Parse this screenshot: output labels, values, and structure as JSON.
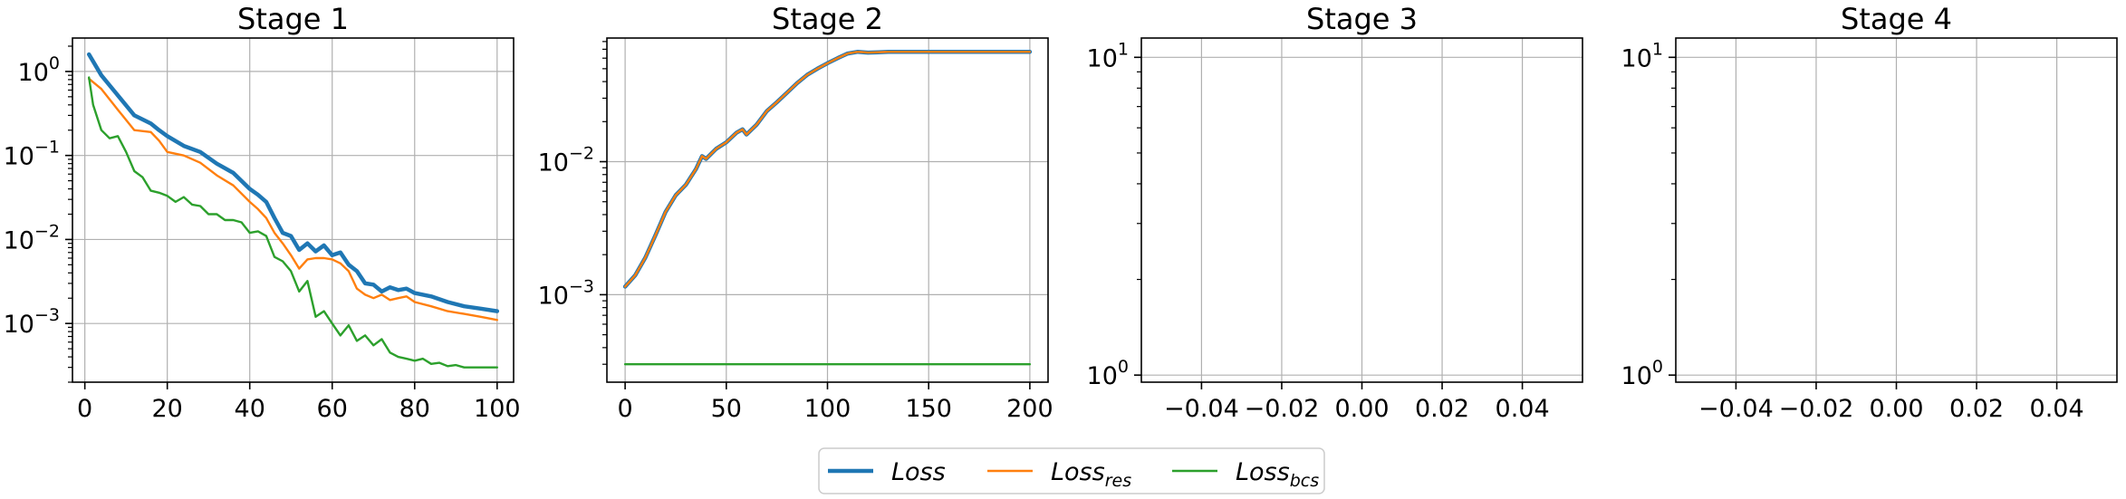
{
  "colors": {
    "loss": "#1f77b4",
    "loss_res": "#ff7f0e",
    "loss_bcs": "#2ca02c",
    "grid": "#b0b0b0"
  },
  "legend": {
    "placement": "bottom-center",
    "items": [
      {
        "base": "Loss",
        "sub": "",
        "color_key": "loss",
        "width": "thick"
      },
      {
        "base": "Loss",
        "sub": "res",
        "color_key": "loss_res",
        "width": "thin"
      },
      {
        "base": "Loss",
        "sub": "bcs",
        "color_key": "loss_bcs",
        "width": "thin"
      }
    ]
  },
  "chart_data": [
    {
      "type": "line",
      "title": "Stage 1",
      "yscale": "log",
      "grid": true,
      "xlim": [
        -3,
        104
      ],
      "ylim": [
        0.0002,
        2.5
      ],
      "xticks": [
        0,
        20,
        40,
        60,
        80,
        100
      ],
      "xticklabels": [
        "0",
        "20",
        "40",
        "60",
        "80",
        "100"
      ],
      "yticks": [
        0.001,
        0.01,
        0.1,
        1
      ],
      "yticklabels": [
        {
          "base": "10",
          "exp": "−3"
        },
        {
          "base": "10",
          "exp": "−2"
        },
        {
          "base": "10",
          "exp": "−1"
        },
        {
          "base": "10",
          "exp": "0"
        }
      ],
      "series": [
        {
          "key": "loss",
          "x": [
            1,
            4,
            8,
            12,
            16,
            18,
            20,
            24,
            28,
            32,
            36,
            40,
            42,
            44,
            46,
            48,
            50,
            52,
            54,
            56,
            58,
            60,
            62,
            64,
            66,
            68,
            70,
            72,
            74,
            76,
            78,
            80,
            84,
            88,
            92,
            96,
            100
          ],
          "y": [
            1.6,
            0.9,
            0.52,
            0.3,
            0.24,
            0.2,
            0.17,
            0.13,
            0.11,
            0.08,
            0.062,
            0.04,
            0.034,
            0.028,
            0.018,
            0.012,
            0.011,
            0.0075,
            0.009,
            0.0072,
            0.0085,
            0.0065,
            0.007,
            0.005,
            0.0042,
            0.003,
            0.0029,
            0.0024,
            0.0027,
            0.0025,
            0.0026,
            0.0023,
            0.0021,
            0.0018,
            0.0016,
            0.0015,
            0.0014
          ]
        },
        {
          "key": "loss_res",
          "x": [
            1,
            4,
            8,
            12,
            16,
            18,
            20,
            24,
            28,
            32,
            36,
            40,
            42,
            44,
            46,
            48,
            50,
            52,
            54,
            56,
            58,
            60,
            62,
            64,
            66,
            68,
            70,
            72,
            74,
            76,
            78,
            80,
            84,
            88,
            92,
            96,
            100
          ],
          "y": [
            0.82,
            0.62,
            0.35,
            0.2,
            0.19,
            0.15,
            0.11,
            0.1,
            0.082,
            0.058,
            0.044,
            0.028,
            0.023,
            0.018,
            0.012,
            0.009,
            0.0065,
            0.0045,
            0.0058,
            0.006,
            0.006,
            0.0058,
            0.0052,
            0.0042,
            0.0026,
            0.0022,
            0.002,
            0.0022,
            0.0019,
            0.002,
            0.0021,
            0.0018,
            0.0016,
            0.0014,
            0.0013,
            0.0012,
            0.0011
          ]
        },
        {
          "key": "loss_bcs",
          "x": [
            1,
            2,
            4,
            6,
            8,
            10,
            12,
            14,
            16,
            18,
            20,
            22,
            24,
            26,
            28,
            30,
            32,
            34,
            36,
            38,
            40,
            42,
            44,
            46,
            48,
            50,
            52,
            54,
            56,
            58,
            60,
            62,
            64,
            66,
            68,
            70,
            72,
            74,
            76,
            78,
            80,
            82,
            84,
            86,
            88,
            90,
            92,
            94,
            96,
            100
          ],
          "y": [
            0.85,
            0.4,
            0.2,
            0.16,
            0.17,
            0.11,
            0.065,
            0.055,
            0.038,
            0.036,
            0.033,
            0.028,
            0.032,
            0.026,
            0.025,
            0.02,
            0.02,
            0.017,
            0.017,
            0.016,
            0.012,
            0.0125,
            0.011,
            0.0062,
            0.0055,
            0.0042,
            0.0024,
            0.0032,
            0.0012,
            0.0014,
            0.001,
            0.00072,
            0.00095,
            0.00062,
            0.00072,
            0.00055,
            0.00065,
            0.00045,
            0.0004,
            0.00038,
            0.00036,
            0.00038,
            0.00033,
            0.00034,
            0.00031,
            0.00032,
            0.0003,
            0.0003,
            0.0003,
            0.0003
          ]
        }
      ]
    },
    {
      "type": "line",
      "title": "Stage 2",
      "yscale": "log",
      "grid": true,
      "xlim": [
        -9,
        209
      ],
      "ylim": [
        0.00022,
        0.085
      ],
      "xticks": [
        0,
        50,
        100,
        150,
        200
      ],
      "xticklabels": [
        "0",
        "50",
        "100",
        "150",
        "200"
      ],
      "yticks": [
        0.001,
        0.01
      ],
      "yticklabels": [
        {
          "base": "10",
          "exp": "−3"
        },
        {
          "base": "10",
          "exp": "−2"
        }
      ],
      "series": [
        {
          "key": "loss",
          "x": [
            0,
            5,
            10,
            15,
            20,
            25,
            30,
            35,
            38,
            40,
            45,
            50,
            55,
            58,
            60,
            65,
            70,
            75,
            80,
            85,
            90,
            95,
            100,
            105,
            110,
            115,
            120,
            125,
            130,
            140,
            150,
            160,
            170,
            180,
            190,
            200
          ],
          "y": [
            0.00115,
            0.0014,
            0.0019,
            0.0028,
            0.0042,
            0.0056,
            0.0067,
            0.0088,
            0.011,
            0.0105,
            0.0125,
            0.014,
            0.0165,
            0.0175,
            0.016,
            0.019,
            0.024,
            0.028,
            0.033,
            0.039,
            0.045,
            0.05,
            0.055,
            0.06,
            0.065,
            0.067,
            0.066,
            0.0665,
            0.067,
            0.067,
            0.067,
            0.067,
            0.067,
            0.067,
            0.067,
            0.067
          ]
        },
        {
          "key": "loss_res",
          "x": [
            0,
            5,
            10,
            15,
            20,
            25,
            30,
            35,
            38,
            40,
            45,
            50,
            55,
            58,
            60,
            65,
            70,
            75,
            80,
            85,
            90,
            95,
            100,
            105,
            110,
            115,
            120,
            125,
            130,
            140,
            150,
            160,
            170,
            180,
            190,
            200
          ],
          "y": [
            0.00115,
            0.0014,
            0.0019,
            0.0028,
            0.0042,
            0.0056,
            0.0067,
            0.0088,
            0.011,
            0.0105,
            0.0125,
            0.014,
            0.0165,
            0.0175,
            0.016,
            0.019,
            0.024,
            0.028,
            0.033,
            0.039,
            0.045,
            0.05,
            0.055,
            0.06,
            0.065,
            0.067,
            0.066,
            0.0665,
            0.067,
            0.067,
            0.067,
            0.067,
            0.067,
            0.067,
            0.067,
            0.067
          ]
        },
        {
          "key": "loss_bcs",
          "x": [
            0,
            200
          ],
          "y": [
            0.0003,
            0.0003
          ]
        }
      ]
    },
    {
      "type": "line",
      "title": "Stage 3",
      "yscale": "log",
      "grid": true,
      "xlim": [
        -0.055,
        0.055
      ],
      "ylim": [
        0.95,
        11.5
      ],
      "xticks": [
        -0.04,
        -0.02,
        0.0,
        0.02,
        0.04
      ],
      "xticklabels": [
        "−0.04",
        "−0.02",
        "0.00",
        "0.02",
        "0.04"
      ],
      "yticks": [
        1,
        10
      ],
      "yticklabels": [
        {
          "base": "10",
          "exp": "0"
        },
        {
          "base": "10",
          "exp": "1"
        }
      ],
      "series": []
    },
    {
      "type": "line",
      "title": "Stage 4",
      "yscale": "log",
      "grid": true,
      "xlim": [
        -0.055,
        0.055
      ],
      "ylim": [
        0.95,
        11.5
      ],
      "xticks": [
        -0.04,
        -0.02,
        0.0,
        0.02,
        0.04
      ],
      "xticklabels": [
        "−0.04",
        "−0.02",
        "0.00",
        "0.02",
        "0.04"
      ],
      "yticks": [
        1,
        10
      ],
      "yticklabels": [
        {
          "base": "10",
          "exp": "0"
        },
        {
          "base": "10",
          "exp": "1"
        }
      ],
      "series": []
    }
  ]
}
